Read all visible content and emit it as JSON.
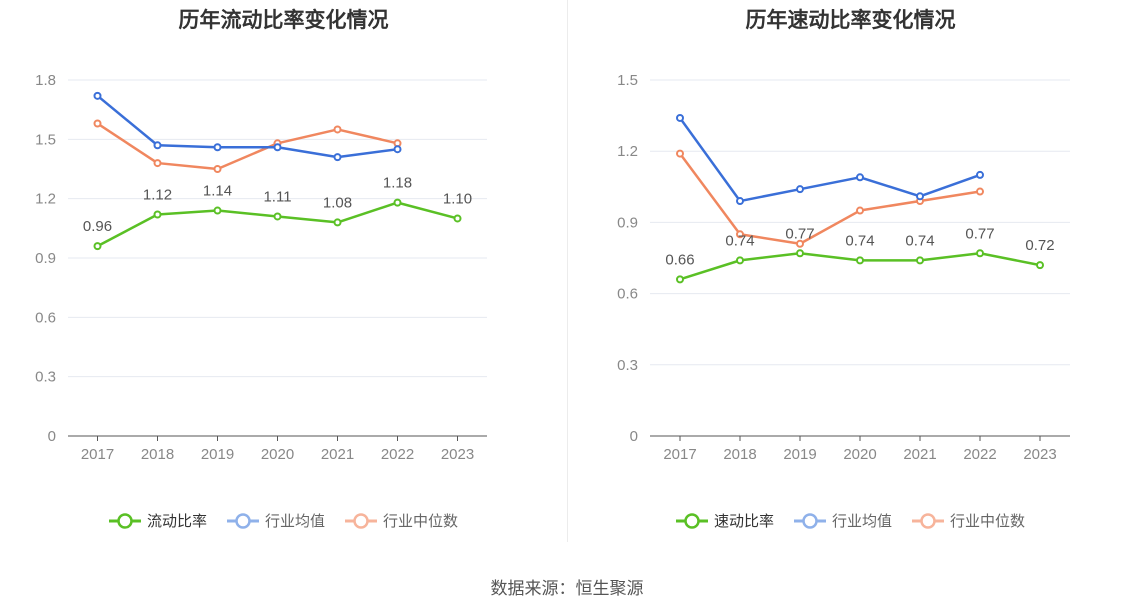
{
  "charts": [
    {
      "title": "历年流动比率变化情况",
      "legend": [
        "流动比率",
        "行业均值",
        "行业中位数"
      ]
    },
    {
      "title": "历年速动比率变化情况",
      "legend": [
        "速动比率",
        "行业均值",
        "行业中位数"
      ]
    }
  ],
  "footer": {
    "label": "数据来源：",
    "source": "恒生聚源"
  },
  "colors": {
    "company": "#5ac025",
    "industry_avg": "#3a6fd8",
    "industry_median": "#f0875f",
    "grid": "#e6e9f0",
    "axis": "#555555",
    "tick": "#888888"
  },
  "chart_data": [
    {
      "type": "line",
      "title": "历年流动比率变化情况",
      "x": [
        "2017",
        "2018",
        "2019",
        "2020",
        "2021",
        "2022",
        "2023"
      ],
      "ylim": [
        0,
        1.8
      ],
      "yticks": [
        "0",
        "0.3",
        "0.6",
        "0.9",
        "1.2",
        "1.5",
        "1.8"
      ],
      "grid": true,
      "legend_position": "bottom",
      "series": [
        {
          "name": "流动比率",
          "values": [
            0.96,
            1.12,
            1.14,
            1.11,
            1.08,
            1.18,
            1.1
          ],
          "labels": [
            "0.96",
            "1.12",
            "1.14",
            "1.11",
            "1.08",
            "1.18",
            "1.10"
          ]
        },
        {
          "name": "行业均值",
          "values": [
            1.72,
            1.47,
            1.46,
            1.46,
            1.41,
            1.45,
            null
          ]
        },
        {
          "name": "行业中位数",
          "values": [
            1.58,
            1.38,
            1.35,
            1.48,
            1.55,
            1.48,
            null
          ]
        }
      ]
    },
    {
      "type": "line",
      "title": "历年速动比率变化情况",
      "x": [
        "2017",
        "2018",
        "2019",
        "2020",
        "2021",
        "2022",
        "2023"
      ],
      "ylim": [
        0,
        1.5
      ],
      "yticks": [
        "0",
        "0.3",
        "0.6",
        "0.9",
        "1.2",
        "1.5"
      ],
      "grid": true,
      "legend_position": "bottom",
      "series": [
        {
          "name": "速动比率",
          "values": [
            0.66,
            0.74,
            0.77,
            0.74,
            0.74,
            0.77,
            0.72
          ],
          "labels": [
            "0.66",
            "0.74",
            "0.77",
            "0.74",
            "0.74",
            "0.77",
            "0.72"
          ]
        },
        {
          "name": "行业均值",
          "values": [
            1.34,
            0.99,
            1.04,
            1.09,
            1.01,
            1.1,
            null
          ]
        },
        {
          "name": "行业中位数",
          "values": [
            1.19,
            0.85,
            0.81,
            0.95,
            0.99,
            1.03,
            null
          ]
        }
      ]
    }
  ]
}
